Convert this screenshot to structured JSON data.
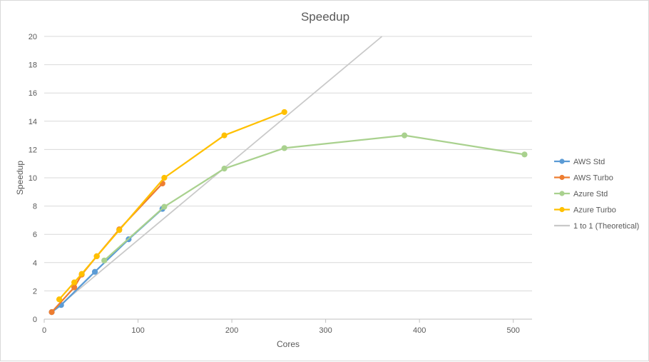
{
  "chart_data": {
    "type": "line",
    "title": "Speedup",
    "xlabel": "Cores",
    "ylabel": "Speedup",
    "xlim": [
      0,
      520
    ],
    "ylim": [
      0,
      20
    ],
    "xticks": [
      0,
      100,
      200,
      300,
      400,
      500
    ],
    "yticks": [
      0,
      2,
      4,
      6,
      8,
      10,
      12,
      14,
      16,
      18,
      20
    ],
    "grid": "horizontal",
    "legend_position": "right",
    "series": [
      {
        "name": "AWS Std",
        "color": "#5b9bd5",
        "markers": true,
        "points": [
          [
            8,
            0.5
          ],
          [
            18,
            1.0
          ],
          [
            54,
            3.35
          ],
          [
            90,
            5.65
          ],
          [
            126,
            7.8
          ]
        ]
      },
      {
        "name": "AWS Turbo",
        "color": "#ed7d31",
        "markers": true,
        "points": [
          [
            8,
            0.5
          ],
          [
            32,
            2.25
          ],
          [
            40,
            3.15
          ],
          [
            56,
            4.45
          ],
          [
            80,
            6.35
          ],
          [
            126,
            9.6
          ]
        ]
      },
      {
        "name": "Azure Std",
        "color": "#a9d18e",
        "markers": true,
        "points": [
          [
            64,
            4.15
          ],
          [
            128,
            7.95
          ],
          [
            192,
            10.65
          ],
          [
            256,
            12.1
          ],
          [
            384,
            13.0
          ],
          [
            512,
            11.65
          ]
        ]
      },
      {
        "name": "Azure Turbo",
        "color": "#ffc000",
        "markers": true,
        "points": [
          [
            16,
            1.4
          ],
          [
            32,
            2.6
          ],
          [
            40,
            3.2
          ],
          [
            56,
            4.45
          ],
          [
            80,
            6.3
          ],
          [
            128,
            10.0
          ],
          [
            192,
            13.0
          ],
          [
            256,
            14.65
          ]
        ]
      },
      {
        "name": "1 to 1 (Theoretical)",
        "color": "#c9c9c9",
        "markers": false,
        "points": [
          [
            8,
            0.5
          ],
          [
            360,
            20
          ]
        ]
      }
    ]
  }
}
